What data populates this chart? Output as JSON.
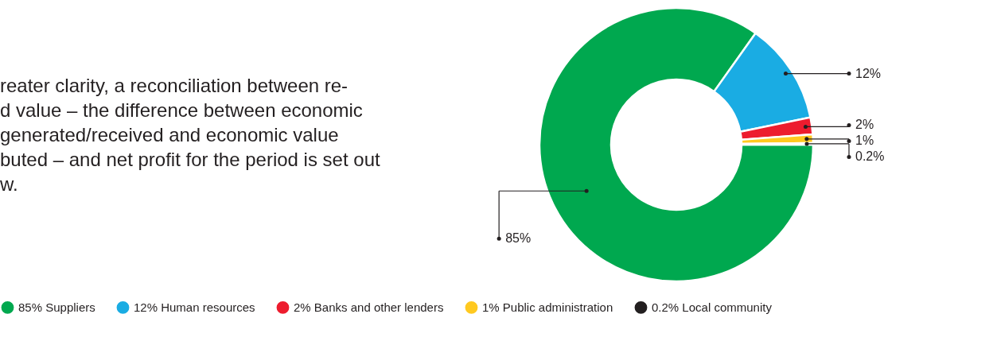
{
  "chart_data": {
    "type": "donut",
    "categories": [
      "Suppliers",
      "Human resources",
      "Banks and other lenders",
      "Public administration",
      "Local community"
    ],
    "values": [
      85,
      12,
      2,
      1,
      0.2
    ],
    "colors": [
      "#00a84f",
      "#1aace3",
      "#ed1c2e",
      "#ffc920",
      "#231f20"
    ],
    "value_labels": [
      "85%",
      "12%",
      "2%",
      "1%",
      "0.2%"
    ],
    "legend": "bottom",
    "annotations": [
      "reater clarity, a reconciliation between re-",
      "d value – the difference between economic",
      "generated/received and economic value",
      "buted – and net profit for the period is set out",
      "w."
    ]
  }
}
